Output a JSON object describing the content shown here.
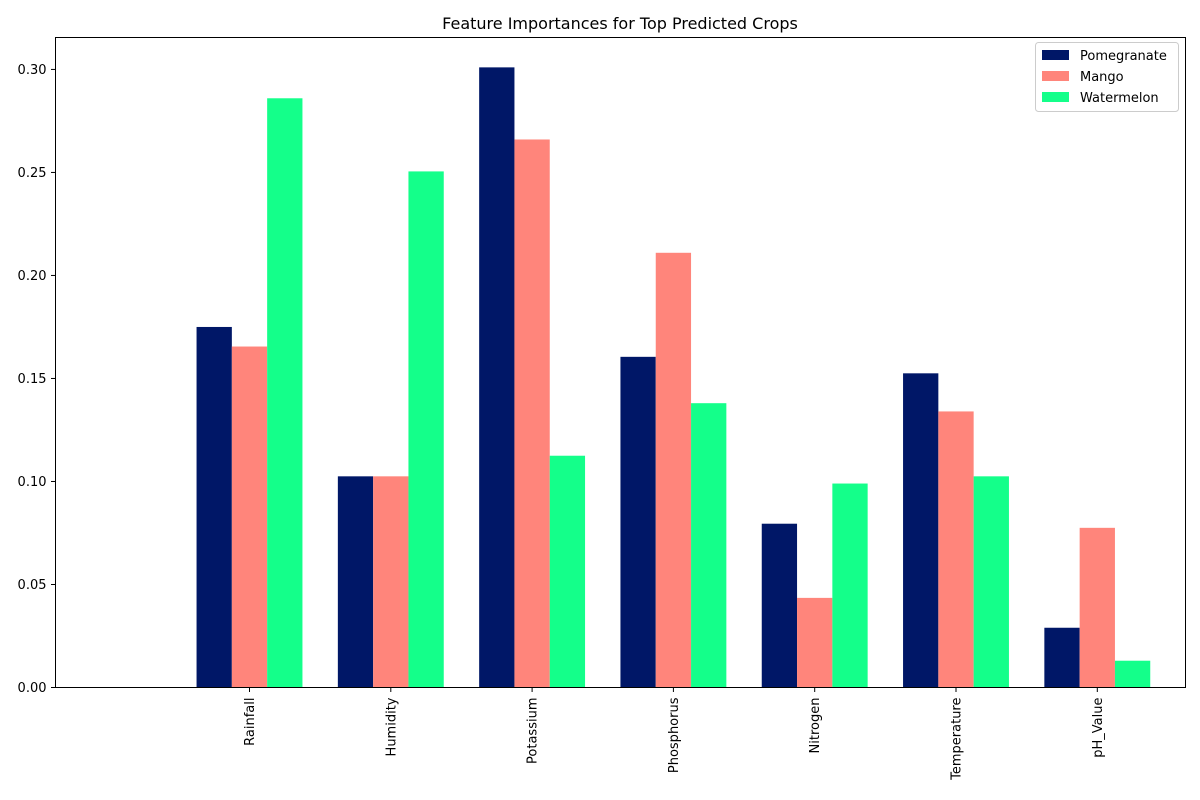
{
  "chart_data": {
    "type": "bar",
    "title": "Feature Importances for Top Predicted Crops",
    "xlabel": "",
    "ylabel": "",
    "categories": [
      "Rainfall",
      "Humidity",
      "Potassium",
      "Phosphorus",
      "Nitrogen",
      "Temperature",
      "pH_Value"
    ],
    "series": [
      {
        "name": "Pomegranate",
        "color": "#001767",
        "values": [
          0.175,
          0.1025,
          0.301,
          0.1605,
          0.0795,
          0.1525,
          0.029
        ]
      },
      {
        "name": "Mango",
        "color": "#ff857b",
        "values": [
          0.1655,
          0.1025,
          0.266,
          0.211,
          0.0435,
          0.134,
          0.0775
        ]
      },
      {
        "name": "Watermelon",
        "color": "#14ff8a",
        "values": [
          0.286,
          0.2505,
          0.1125,
          0.138,
          0.099,
          0.1025,
          0.013
        ]
      }
    ],
    "ylim": [
      0,
      0.3155
    ],
    "yticks": [
      "0.00",
      "0.05",
      "0.10",
      "0.15",
      "0.20",
      "0.25",
      "0.30"
    ],
    "grid": false,
    "legend_position": "top-right"
  }
}
